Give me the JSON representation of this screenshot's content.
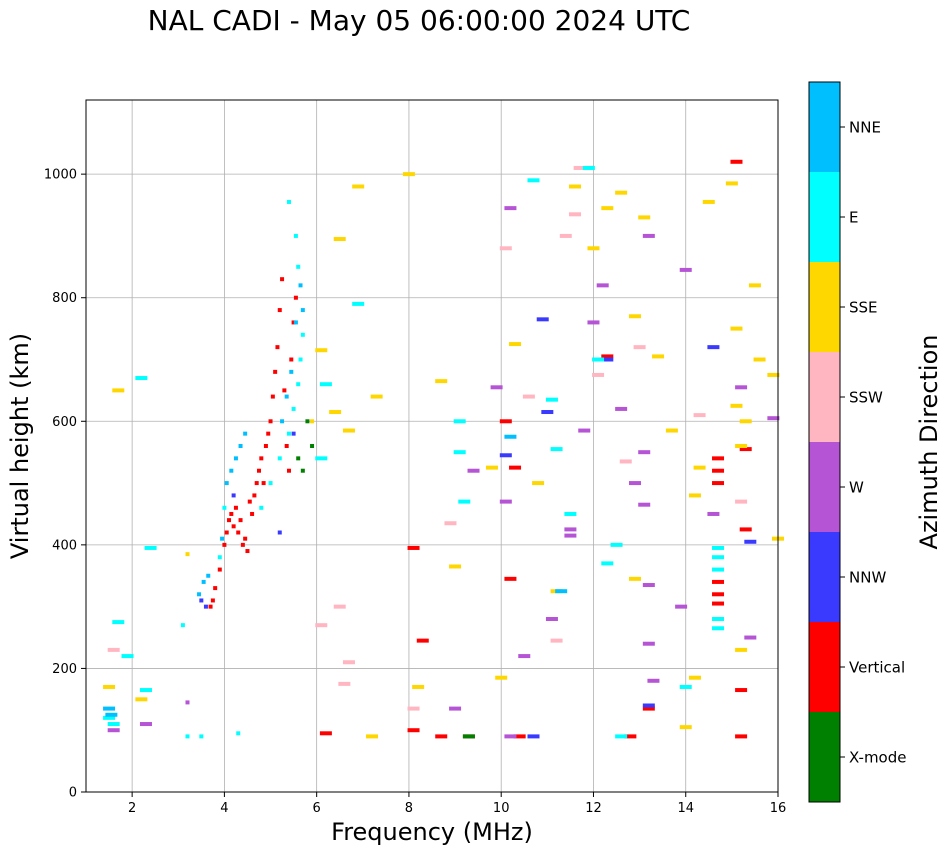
{
  "title": "NAL CADI - May 05 06:00:00 2024 UTC",
  "chart_data": {
    "type": "scatter",
    "title": "NAL CADI - May 05 06:00:00 2024 UTC",
    "xlabel": "Frequency (MHz)",
    "ylabel": "Virtual height (km)",
    "xlim": [
      1,
      16
    ],
    "ylim": [
      0,
      1120
    ],
    "xticks": [
      2,
      4,
      6,
      8,
      10,
      12,
      14,
      16
    ],
    "yticks": [
      0,
      200,
      400,
      600,
      800,
      1000
    ],
    "grid": true,
    "colorbar": {
      "label": "Azimuth Direction",
      "categories": [
        "X-mode",
        "Vertical",
        "NNW",
        "W",
        "SSW",
        "SSE",
        "E",
        "NNE"
      ],
      "colors": [
        "#008000",
        "#ff0000",
        "#3a3aff",
        "#b555d5",
        "#ffb6c1",
        "#ffd700",
        "#00ffff",
        "#00bfff"
      ]
    },
    "series": [
      {
        "name": "Vertical",
        "points": [
          [
            3.7,
            300
          ],
          [
            3.75,
            310
          ],
          [
            3.8,
            330
          ],
          [
            3.9,
            360
          ],
          [
            4.0,
            400
          ],
          [
            4.05,
            420
          ],
          [
            4.1,
            440
          ],
          [
            4.15,
            450
          ],
          [
            4.2,
            430
          ],
          [
            4.25,
            460
          ],
          [
            4.3,
            420
          ],
          [
            4.35,
            440
          ],
          [
            4.4,
            400
          ],
          [
            4.45,
            410
          ],
          [
            4.5,
            390
          ],
          [
            4.55,
            470
          ],
          [
            4.6,
            450
          ],
          [
            4.65,
            480
          ],
          [
            4.7,
            500
          ],
          [
            4.75,
            520
          ],
          [
            4.8,
            540
          ],
          [
            4.85,
            500
          ],
          [
            4.9,
            560
          ],
          [
            4.95,
            580
          ],
          [
            5.0,
            600
          ],
          [
            5.05,
            640
          ],
          [
            5.1,
            680
          ],
          [
            5.15,
            720
          ],
          [
            5.2,
            780
          ],
          [
            5.25,
            830
          ],
          [
            5.3,
            650
          ],
          [
            5.35,
            560
          ],
          [
            5.4,
            520
          ],
          [
            5.45,
            700
          ],
          [
            5.5,
            760
          ],
          [
            5.55,
            800
          ],
          [
            6.2,
            95
          ],
          [
            8.1,
            100
          ],
          [
            8.3,
            245
          ],
          [
            8.1,
            395
          ],
          [
            8.7,
            90
          ],
          [
            10.1,
            600
          ],
          [
            10.2,
            345
          ],
          [
            10.4,
            90
          ],
          [
            10.3,
            525
          ],
          [
            14.7,
            500
          ],
          [
            14.7,
            520
          ],
          [
            14.7,
            540
          ],
          [
            14.7,
            340
          ],
          [
            14.7,
            320
          ],
          [
            14.7,
            305
          ],
          [
            15.2,
            90
          ],
          [
            15.2,
            165
          ],
          [
            15.1,
            1020
          ],
          [
            15.3,
            555
          ],
          [
            15.3,
            425
          ],
          [
            13.2,
            135
          ],
          [
            12.3,
            705
          ],
          [
            12.8,
            90
          ],
          [
            9.3,
            90
          ]
        ]
      },
      {
        "name": "X-mode",
        "points": [
          [
            9.3,
            90
          ],
          [
            5.8,
            600
          ],
          [
            5.9,
            560
          ],
          [
            5.6,
            540
          ],
          [
            5.7,
            520
          ]
        ]
      },
      {
        "name": "NNW",
        "points": [
          [
            3.5,
            310
          ],
          [
            3.6,
            300
          ],
          [
            4.2,
            480
          ],
          [
            5.2,
            420
          ],
          [
            5.5,
            580
          ],
          [
            10.1,
            545
          ],
          [
            10.7,
            90
          ],
          [
            11.0,
            615
          ],
          [
            12.3,
            700
          ],
          [
            13.2,
            140
          ],
          [
            14.6,
            720
          ],
          [
            15.4,
            405
          ],
          [
            10.9,
            765
          ]
        ]
      },
      {
        "name": "W",
        "points": [
          [
            1.6,
            100
          ],
          [
            2.3,
            110
          ],
          [
            3.2,
            145
          ],
          [
            9.0,
            135
          ],
          [
            9.4,
            520
          ],
          [
            9.9,
            655
          ],
          [
            10.1,
            470
          ],
          [
            10.2,
            90
          ],
          [
            10.5,
            220
          ],
          [
            11.1,
            280
          ],
          [
            11.5,
            425
          ],
          [
            11.8,
            585
          ],
          [
            12.0,
            760
          ],
          [
            12.2,
            820
          ],
          [
            12.6,
            620
          ],
          [
            12.9,
            500
          ],
          [
            13.1,
            550
          ],
          [
            13.2,
            900
          ],
          [
            13.2,
            240
          ],
          [
            13.3,
            180
          ],
          [
            13.9,
            300
          ],
          [
            14.0,
            845
          ],
          [
            14.6,
            450
          ],
          [
            15.4,
            250
          ],
          [
            15.2,
            655
          ],
          [
            15.9,
            605
          ],
          [
            10.2,
            945
          ],
          [
            11.5,
            415
          ],
          [
            13.1,
            465
          ],
          [
            13.2,
            335
          ]
        ]
      },
      {
        "name": "SSW",
        "points": [
          [
            1.6,
            230
          ],
          [
            6.1,
            270
          ],
          [
            6.5,
            300
          ],
          [
            6.6,
            175
          ],
          [
            6.7,
            210
          ],
          [
            8.1,
            135
          ],
          [
            8.9,
            435
          ],
          [
            10.1,
            880
          ],
          [
            10.6,
            640
          ],
          [
            11.2,
            245
          ],
          [
            11.4,
            900
          ],
          [
            11.6,
            935
          ],
          [
            12.1,
            675
          ],
          [
            12.7,
            535
          ],
          [
            13.0,
            720
          ],
          [
            14.3,
            610
          ],
          [
            15.2,
            470
          ],
          [
            11.7,
            1010
          ]
        ]
      },
      {
        "name": "SSE",
        "points": [
          [
            1.5,
            170
          ],
          [
            1.7,
            650
          ],
          [
            2.2,
            150
          ],
          [
            3.2,
            385
          ],
          [
            5.9,
            600
          ],
          [
            6.1,
            715
          ],
          [
            6.4,
            615
          ],
          [
            6.5,
            895
          ],
          [
            6.7,
            585
          ],
          [
            6.9,
            980
          ],
          [
            7.2,
            90
          ],
          [
            7.3,
            640
          ],
          [
            8.0,
            1000
          ],
          [
            8.2,
            170
          ],
          [
            8.7,
            665
          ],
          [
            9.0,
            365
          ],
          [
            9.8,
            525
          ],
          [
            10.0,
            185
          ],
          [
            10.3,
            725
          ],
          [
            10.8,
            500
          ],
          [
            11.2,
            325
          ],
          [
            11.6,
            980
          ],
          [
            12.0,
            880
          ],
          [
            12.3,
            945
          ],
          [
            12.6,
            970
          ],
          [
            12.9,
            345
          ],
          [
            13.4,
            705
          ],
          [
            13.7,
            585
          ],
          [
            14.0,
            105
          ],
          [
            14.2,
            185
          ],
          [
            14.3,
            525
          ],
          [
            14.5,
            955
          ],
          [
            15.0,
            985
          ],
          [
            15.1,
            750
          ],
          [
            15.2,
            560
          ],
          [
            15.5,
            820
          ],
          [
            15.6,
            700
          ],
          [
            15.9,
            675
          ],
          [
            16.0,
            410
          ],
          [
            15.2,
            230
          ],
          [
            12.9,
            770
          ],
          [
            13.1,
            930
          ],
          [
            14.2,
            480
          ],
          [
            15.1,
            625
          ],
          [
            15.3,
            600
          ]
        ]
      },
      {
        "name": "E",
        "points": [
          [
            1.5,
            120
          ],
          [
            1.6,
            110
          ],
          [
            1.7,
            275
          ],
          [
            1.9,
            220
          ],
          [
            2.2,
            670
          ],
          [
            2.3,
            165
          ],
          [
            2.4,
            395
          ],
          [
            3.1,
            270
          ],
          [
            3.2,
            90
          ],
          [
            3.5,
            90
          ],
          [
            3.9,
            380
          ],
          [
            4.0,
            460
          ],
          [
            4.3,
            95
          ],
          [
            4.8,
            460
          ],
          [
            5.0,
            500
          ],
          [
            5.2,
            540
          ],
          [
            5.4,
            580
          ],
          [
            5.5,
            620
          ],
          [
            5.6,
            660
          ],
          [
            5.65,
            700
          ],
          [
            5.7,
            740
          ],
          [
            5.6,
            850
          ],
          [
            5.55,
            900
          ],
          [
            5.4,
            955
          ],
          [
            6.1,
            540
          ],
          [
            6.2,
            660
          ],
          [
            6.9,
            790
          ],
          [
            9.1,
            600
          ],
          [
            9.1,
            550
          ],
          [
            9.2,
            470
          ],
          [
            10.7,
            990
          ],
          [
            11.2,
            555
          ],
          [
            11.5,
            450
          ],
          [
            11.9,
            1010
          ],
          [
            12.3,
            370
          ],
          [
            12.5,
            400
          ],
          [
            12.6,
            90
          ],
          [
            14.0,
            170
          ],
          [
            14.7,
            360
          ],
          [
            14.7,
            380
          ],
          [
            14.7,
            395
          ],
          [
            14.7,
            280
          ],
          [
            14.7,
            265
          ],
          [
            11.1,
            635
          ],
          [
            12.1,
            700
          ]
        ]
      },
      {
        "name": "NNE",
        "points": [
          [
            1.5,
            135
          ],
          [
            1.55,
            125
          ],
          [
            3.45,
            320
          ],
          [
            3.55,
            340
          ],
          [
            3.65,
            350
          ],
          [
            3.95,
            410
          ],
          [
            4.05,
            500
          ],
          [
            4.15,
            520
          ],
          [
            4.25,
            540
          ],
          [
            4.35,
            560
          ],
          [
            4.45,
            580
          ],
          [
            5.25,
            600
          ],
          [
            5.35,
            640
          ],
          [
            5.45,
            680
          ],
          [
            5.55,
            760
          ],
          [
            5.65,
            820
          ],
          [
            5.7,
            780
          ],
          [
            10.2,
            575
          ],
          [
            11.3,
            325
          ]
        ]
      }
    ]
  }
}
